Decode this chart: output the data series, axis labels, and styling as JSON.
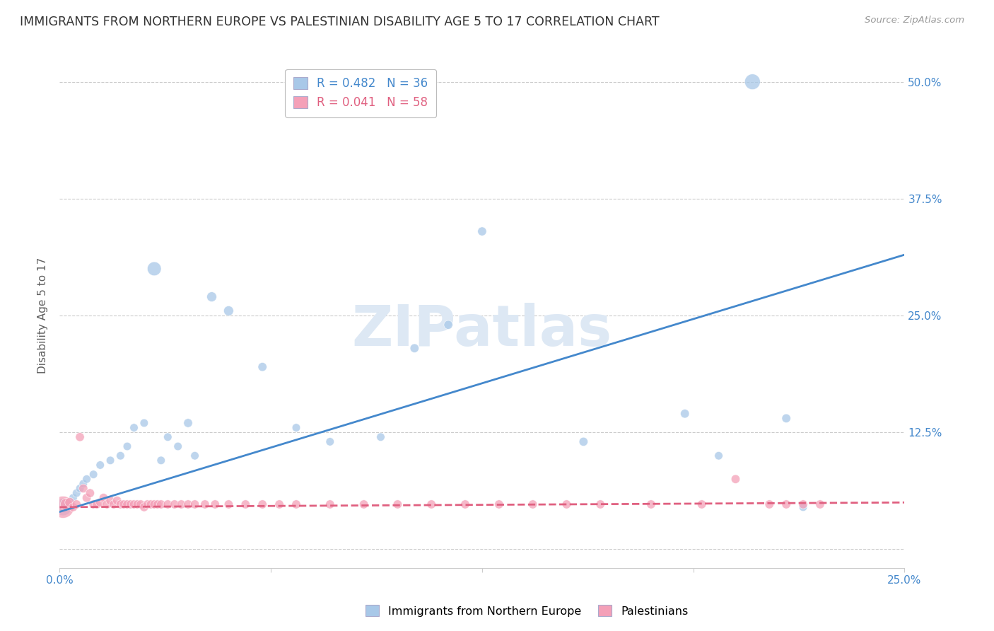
{
  "title": "IMMIGRANTS FROM NORTHERN EUROPE VS PALESTINIAN DISABILITY AGE 5 TO 17 CORRELATION CHART",
  "source": "Source: ZipAtlas.com",
  "ylabel_label": "Disability Age 5 to 17",
  "legend_labels": [
    "Immigrants from Northern Europe",
    "Palestinians"
  ],
  "blue_R": "R = 0.482",
  "blue_N": "N = 36",
  "pink_R": "R = 0.041",
  "pink_N": "N = 58",
  "blue_color": "#a8c8e8",
  "pink_color": "#f4a0b8",
  "blue_line_color": "#4488cc",
  "pink_line_color": "#e06080",
  "watermark_text": "ZIPatlas",
  "watermark_color": "#dde8f4",
  "ytick_vals": [
    0.0,
    0.125,
    0.25,
    0.375,
    0.5
  ],
  "ytick_labels": [
    "",
    "12.5%",
    "25.0%",
    "37.5%",
    "50.0%"
  ],
  "xtick_vals": [
    0.0,
    0.0625,
    0.125,
    0.1875,
    0.25
  ],
  "xtick_labels": [
    "0.0%",
    "",
    "",
    "",
    "25.0%"
  ],
  "xlim": [
    0.0,
    0.25
  ],
  "ylim": [
    -0.02,
    0.52
  ],
  "blue_line_x0": 0.0,
  "blue_line_y0": 0.04,
  "blue_line_x1": 0.25,
  "blue_line_y1": 0.315,
  "pink_line_x0": 0.0,
  "pink_line_y0": 0.045,
  "pink_line_x1": 0.25,
  "pink_line_y1": 0.05,
  "blue_scatter_x": [
    0.001,
    0.002,
    0.003,
    0.004,
    0.005,
    0.006,
    0.007,
    0.008,
    0.01,
    0.012,
    0.015,
    0.018,
    0.02,
    0.022,
    0.025,
    0.028,
    0.03,
    0.032,
    0.035,
    0.038,
    0.04,
    0.045,
    0.05,
    0.06,
    0.07,
    0.08,
    0.095,
    0.105,
    0.115,
    0.125,
    0.155,
    0.185,
    0.195,
    0.205,
    0.215,
    0.22
  ],
  "blue_scatter_y": [
    0.045,
    0.048,
    0.05,
    0.055,
    0.06,
    0.065,
    0.07,
    0.075,
    0.08,
    0.09,
    0.095,
    0.1,
    0.11,
    0.13,
    0.135,
    0.3,
    0.095,
    0.12,
    0.11,
    0.135,
    0.1,
    0.27,
    0.255,
    0.195,
    0.13,
    0.115,
    0.12,
    0.215,
    0.24,
    0.34,
    0.115,
    0.145,
    0.1,
    0.5,
    0.14,
    0.045
  ],
  "blue_scatter_s": [
    300,
    100,
    80,
    70,
    70,
    70,
    70,
    70,
    70,
    70,
    70,
    70,
    70,
    70,
    70,
    200,
    70,
    70,
    70,
    80,
    70,
    100,
    100,
    80,
    70,
    70,
    70,
    80,
    80,
    80,
    80,
    80,
    70,
    250,
    80,
    70
  ],
  "pink_scatter_x": [
    0.001,
    0.002,
    0.003,
    0.004,
    0.005,
    0.006,
    0.007,
    0.008,
    0.009,
    0.01,
    0.011,
    0.012,
    0.013,
    0.014,
    0.015,
    0.016,
    0.017,
    0.018,
    0.019,
    0.02,
    0.021,
    0.022,
    0.023,
    0.024,
    0.025,
    0.026,
    0.027,
    0.028,
    0.029,
    0.03,
    0.032,
    0.034,
    0.036,
    0.038,
    0.04,
    0.043,
    0.046,
    0.05,
    0.055,
    0.06,
    0.065,
    0.07,
    0.08,
    0.09,
    0.1,
    0.11,
    0.12,
    0.13,
    0.14,
    0.15,
    0.16,
    0.175,
    0.19,
    0.2,
    0.21,
    0.215,
    0.22,
    0.225
  ],
  "pink_scatter_y": [
    0.045,
    0.048,
    0.05,
    0.045,
    0.048,
    0.12,
    0.065,
    0.055,
    0.06,
    0.048,
    0.048,
    0.05,
    0.055,
    0.048,
    0.052,
    0.048,
    0.052,
    0.048,
    0.048,
    0.048,
    0.048,
    0.048,
    0.048,
    0.048,
    0.045,
    0.048,
    0.048,
    0.048,
    0.048,
    0.048,
    0.048,
    0.048,
    0.048,
    0.048,
    0.048,
    0.048,
    0.048,
    0.048,
    0.048,
    0.048,
    0.048,
    0.048,
    0.048,
    0.048,
    0.048,
    0.048,
    0.048,
    0.048,
    0.048,
    0.048,
    0.048,
    0.048,
    0.048,
    0.075,
    0.048,
    0.048,
    0.048,
    0.048
  ],
  "pink_scatter_s": [
    500,
    150,
    100,
    80,
    80,
    80,
    80,
    80,
    80,
    80,
    80,
    80,
    80,
    80,
    80,
    80,
    80,
    80,
    80,
    80,
    80,
    80,
    80,
    80,
    80,
    80,
    80,
    80,
    80,
    80,
    80,
    80,
    80,
    80,
    80,
    80,
    80,
    80,
    80,
    80,
    80,
    80,
    80,
    80,
    80,
    80,
    80,
    80,
    80,
    80,
    80,
    80,
    80,
    80,
    80,
    80,
    80,
    80
  ]
}
